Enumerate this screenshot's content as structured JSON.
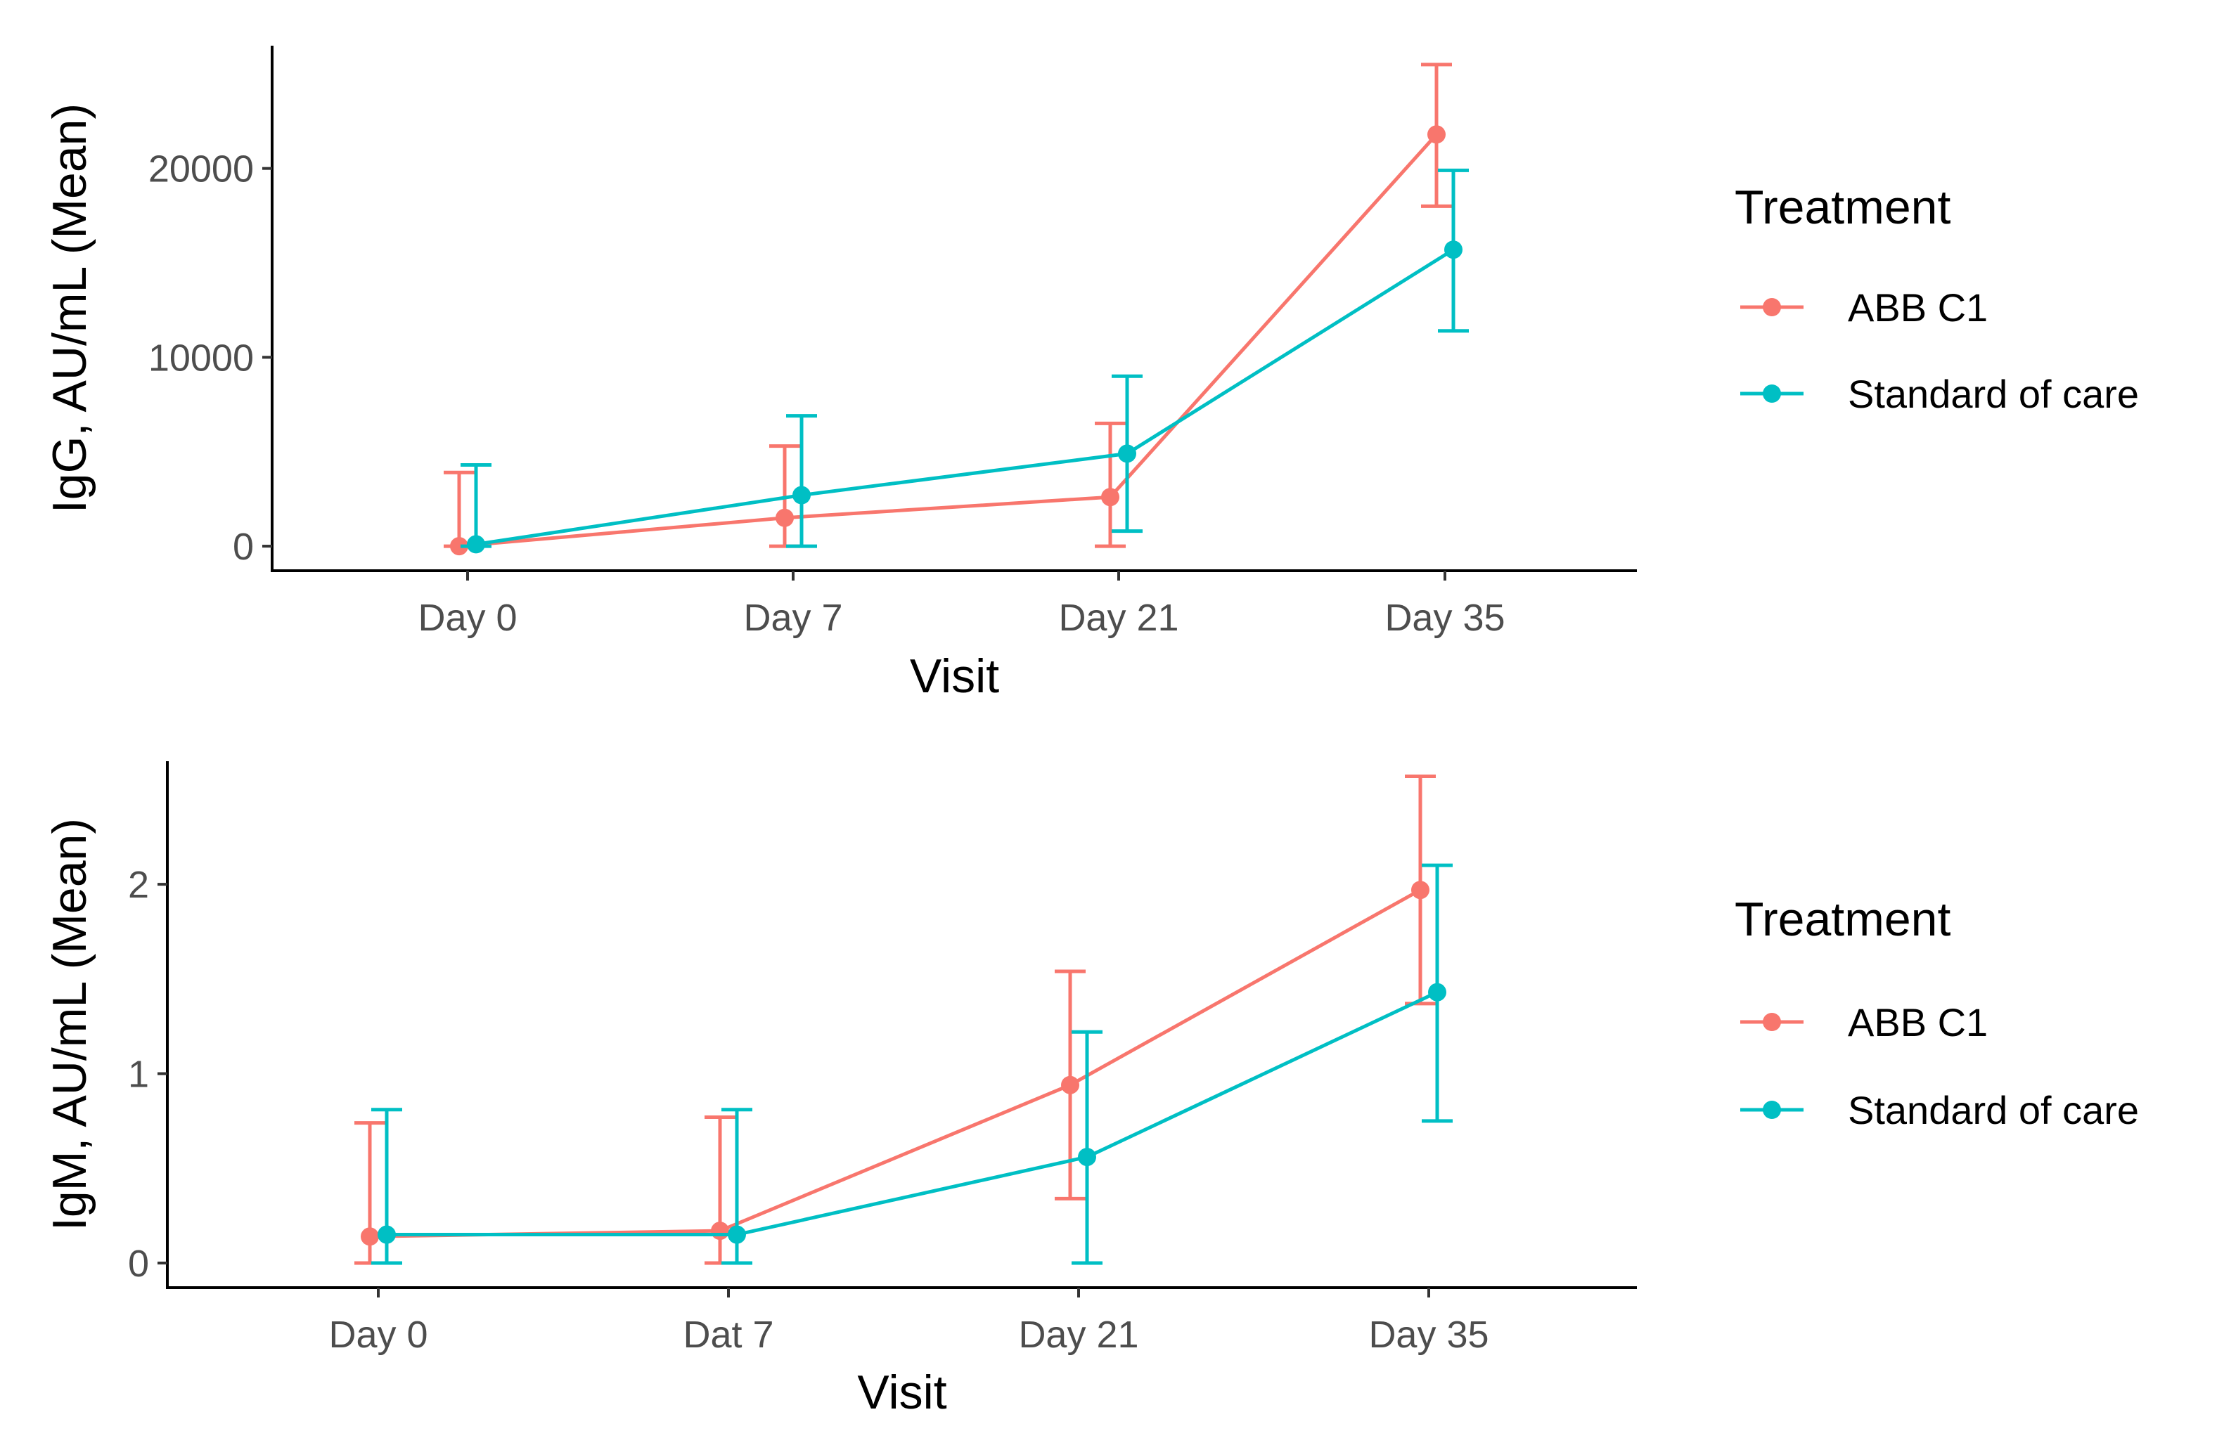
{
  "chart_data": [
    {
      "type": "line",
      "title": "",
      "xlabel": "Visit",
      "ylabel": "IgG, AU/mL (Mean)",
      "categories": [
        "Day 0",
        "Day 7",
        "Day 21",
        "Day 35"
      ],
      "yticks": [
        0,
        10000,
        20000
      ],
      "ytick_labels": [
        "0",
        "10000",
        "20000"
      ],
      "ylim": [
        -1300,
        26500
      ],
      "legend": {
        "title": "Treatment",
        "placement": "right",
        "entries": [
          "ABB C1",
          "Standard of care"
        ]
      },
      "series": [
        {
          "name": "ABB C1",
          "color": "#F8766D",
          "values": [
            0,
            1500,
            2600,
            21800
          ],
          "err_low": [
            0,
            0,
            0,
            18000
          ],
          "err_high": [
            3900,
            5300,
            6500,
            25500
          ]
        },
        {
          "name": "Standard of care",
          "color": "#00BFC4",
          "values": [
            100,
            2700,
            4900,
            15700
          ],
          "err_low": [
            0,
            0,
            800,
            11400
          ],
          "err_high": [
            4300,
            6900,
            9000,
            19900
          ]
        }
      ]
    },
    {
      "type": "line",
      "title": "",
      "xlabel": "Visit",
      "ylabel": "IgM, AU/mL (Mean)",
      "categories": [
        "Day 0",
        "Dat 7",
        "Day 21",
        "Day 35"
      ],
      "yticks": [
        0,
        1,
        2
      ],
      "ytick_labels": [
        "0",
        "1",
        "2"
      ],
      "ylim": [
        -0.13,
        2.65
      ],
      "legend": {
        "title": "Treatment",
        "placement": "right",
        "entries": [
          "ABB C1",
          "Standard of care"
        ]
      },
      "series": [
        {
          "name": "ABB C1",
          "color": "#F8766D",
          "values": [
            0.14,
            0.17,
            0.94,
            1.97
          ],
          "err_low": [
            0,
            0,
            0.34,
            1.37
          ],
          "err_high": [
            0.74,
            0.77,
            1.54,
            2.57
          ]
        },
        {
          "name": "Standard of care",
          "color": "#00BFC4",
          "values": [
            0.15,
            0.15,
            0.56,
            1.43
          ],
          "err_low": [
            0,
            0,
            0,
            0.75
          ],
          "err_high": [
            0.81,
            0.81,
            1.22,
            2.1
          ]
        }
      ]
    }
  ]
}
